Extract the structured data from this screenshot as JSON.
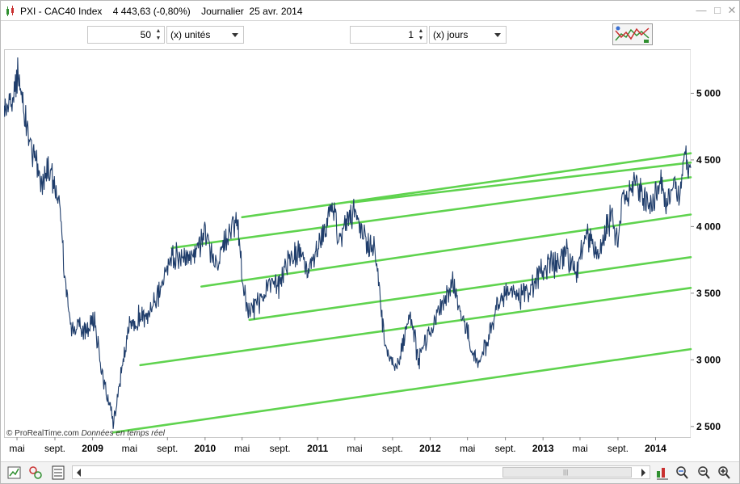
{
  "window": {
    "title": "PXI - CAC40 Index    4 443,63 (-0,80%)    Journalier  25 avr. 2014"
  },
  "toolbar": {
    "units_value": "50",
    "units_label": "(x) unités",
    "days_value": "1",
    "days_label": "(x) jours"
  },
  "watermark": {
    "source": "© ProRealTime.com",
    "note": "Données en temps réel"
  },
  "colors": {
    "price_line": "#1f3d6b",
    "channel_lines": "#5fd34e",
    "axis_text": "#000000"
  },
  "chart_data": {
    "type": "line",
    "title": "",
    "xlabel": "",
    "ylabel": "",
    "y_ticks": [
      "5 000",
      "4 500",
      "4 000",
      "3 500",
      "3 000",
      "2 500"
    ],
    "y_tick_values": [
      5000,
      4500,
      4000,
      3500,
      3000,
      2500
    ],
    "ylim": [
      2420,
      5330
    ],
    "xlim": [
      "2008-03-20",
      "2014-04-25"
    ],
    "x_ticks": [
      {
        "label": "mai",
        "date": "2008-05-01",
        "bold": false
      },
      {
        "label": "sept.",
        "date": "2008-09-01",
        "bold": false
      },
      {
        "label": "2009",
        "date": "2009-01-01",
        "bold": true
      },
      {
        "label": "mai",
        "date": "2009-05-01",
        "bold": false
      },
      {
        "label": "sept.",
        "date": "2009-09-01",
        "bold": false
      },
      {
        "label": "2010",
        "date": "2010-01-01",
        "bold": true
      },
      {
        "label": "mai",
        "date": "2010-05-01",
        "bold": false
      },
      {
        "label": "sept.",
        "date": "2010-09-01",
        "bold": false
      },
      {
        "label": "2011",
        "date": "2011-01-01",
        "bold": true
      },
      {
        "label": "mai",
        "date": "2011-05-01",
        "bold": false
      },
      {
        "label": "sept.",
        "date": "2011-09-01",
        "bold": false
      },
      {
        "label": "2012",
        "date": "2012-01-01",
        "bold": true
      },
      {
        "label": "mai",
        "date": "2012-05-01",
        "bold": false
      },
      {
        "label": "sept.",
        "date": "2012-09-01",
        "bold": false
      },
      {
        "label": "2013",
        "date": "2013-01-01",
        "bold": true
      },
      {
        "label": "mai",
        "date": "2013-05-01",
        "bold": false
      },
      {
        "label": "sept.",
        "date": "2013-09-01",
        "bold": false
      },
      {
        "label": "2014",
        "date": "2014-01-01",
        "bold": true
      }
    ],
    "series": [
      {
        "x": [
          "2008-03-20",
          "2008-04-15",
          "2008-05-05",
          "2008-05-20",
          "2008-06-15",
          "2008-07-15",
          "2008-08-10",
          "2008-09-01",
          "2008-09-20",
          "2008-10-10",
          "2008-10-27",
          "2008-11-15",
          "2008-12-10",
          "2009-01-06",
          "2009-02-01",
          "2009-03-09",
          "2009-04-01",
          "2009-05-01",
          "2009-06-05",
          "2009-07-10",
          "2009-08-10",
          "2009-09-15",
          "2009-10-20",
          "2009-11-20",
          "2009-12-31",
          "2010-01-20",
          "2010-02-10",
          "2010-03-15",
          "2010-04-15",
          "2010-05-07",
          "2010-05-25",
          "2010-06-30",
          "2010-08-05",
          "2010-08-30",
          "2010-09-30",
          "2010-11-05",
          "2010-11-30",
          "2011-01-10",
          "2011-02-17",
          "2011-03-15",
          "2011-04-05",
          "2011-05-02",
          "2011-06-20",
          "2011-07-08",
          "2011-07-25",
          "2011-08-10",
          "2011-09-12",
          "2011-10-05",
          "2011-10-27",
          "2011-11-25",
          "2011-12-20",
          "2012-01-20",
          "2012-02-20",
          "2012-03-16",
          "2012-04-20",
          "2012-05-15",
          "2012-06-04",
          "2012-07-05",
          "2012-08-10",
          "2012-09-14",
          "2012-10-15",
          "2012-11-15",
          "2012-12-20",
          "2013-01-25",
          "2013-02-15",
          "2013-03-15",
          "2013-04-18",
          "2013-05-22",
          "2013-06-24",
          "2013-07-20",
          "2013-08-10",
          "2013-08-30",
          "2013-09-20",
          "2013-10-25",
          "2013-11-15",
          "2013-12-18",
          "2014-01-15",
          "2014-02-04",
          "2014-03-01",
          "2014-03-14",
          "2014-04-04",
          "2014-04-25"
        ],
        "y": [
          4850,
          4950,
          5130,
          4900,
          4600,
          4350,
          4450,
          4300,
          4050,
          3450,
          3200,
          3300,
          3200,
          3300,
          2900,
          2520,
          2850,
          3250,
          3320,
          3350,
          3550,
          3750,
          3800,
          3750,
          3940,
          3800,
          3700,
          3970,
          4050,
          3500,
          3350,
          3450,
          3630,
          3550,
          3750,
          3850,
          3650,
          3900,
          4150,
          3900,
          4040,
          4100,
          3850,
          3800,
          3400,
          3050,
          2950,
          3100,
          3350,
          3000,
          3150,
          3300,
          3450,
          3580,
          3250,
          3100,
          2950,
          3150,
          3450,
          3550,
          3450,
          3500,
          3640,
          3750,
          3700,
          3820,
          3650,
          3980,
          3750,
          3950,
          4080,
          3900,
          4200,
          4300,
          4250,
          4150,
          4320,
          4150,
          4380,
          4200,
          4500,
          4440
        ]
      }
    ],
    "channel_lines": [
      {
        "x": [
          "2009-03-09",
          "2014-04-25"
        ],
        "y": [
          2455,
          3080
        ]
      },
      {
        "x": [
          "2009-06-05",
          "2014-04-25"
        ],
        "y": [
          2960,
          3540
        ]
      },
      {
        "x": [
          "2010-05-25",
          "2014-04-25"
        ],
        "y": [
          3300,
          3770
        ]
      },
      {
        "x": [
          "2009-12-20",
          "2014-04-25"
        ],
        "y": [
          3550,
          4090
        ]
      },
      {
        "x": [
          "2009-09-15",
          "2014-04-25"
        ],
        "y": [
          3840,
          4370
        ]
      },
      {
        "x": [
          "2011-04-20",
          "2014-04-25"
        ],
        "y": [
          4180,
          4480
        ]
      },
      {
        "x": [
          "2010-05-01",
          "2014-04-25"
        ],
        "y": [
          4070,
          4550
        ]
      }
    ]
  },
  "bottombar": {
    "scroll_grip": "|||"
  }
}
